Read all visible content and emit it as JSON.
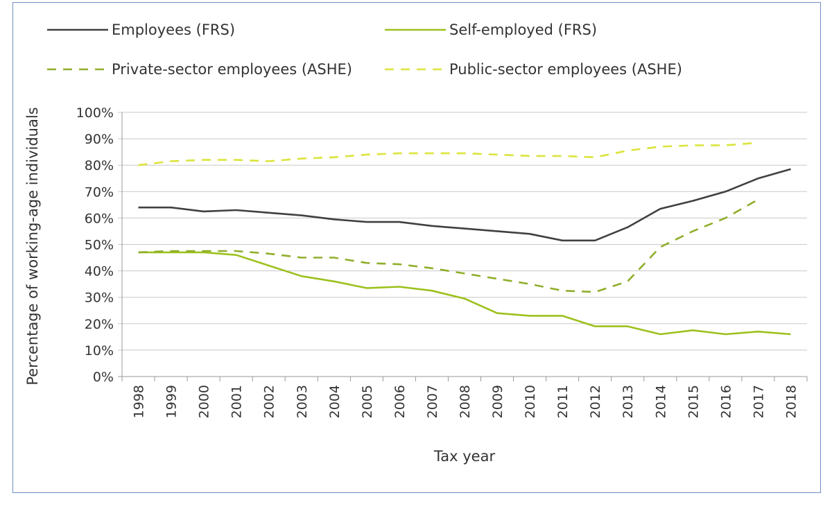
{
  "chart_data": {
    "type": "line",
    "title": "",
    "xlabel": "Tax year",
    "ylabel": "Percentage of working-age individuals",
    "ylim": [
      0,
      100
    ],
    "yticks": [
      "0%",
      "10%",
      "20%",
      "30%",
      "40%",
      "50%",
      "60%",
      "70%",
      "80%",
      "90%",
      "100%"
    ],
    "categories": [
      "1998",
      "1999",
      "2000",
      "2001",
      "2002",
      "2003",
      "2004",
      "2005",
      "2006",
      "2007",
      "2008",
      "2009",
      "2010",
      "2011",
      "2012",
      "2013",
      "2014",
      "2015",
      "2016",
      "2017",
      "2018"
    ],
    "grid": "horizontal",
    "legend_placement": "top",
    "series": [
      {
        "name": "Employees (FRS)",
        "color": "#404040",
        "dash": "solid",
        "values": [
          64,
          64,
          62.5,
          63,
          62,
          61,
          59.5,
          58.5,
          58.5,
          57,
          56,
          55,
          54,
          51.5,
          51.5,
          56.5,
          63.5,
          66.5,
          70,
          75,
          78.5
        ]
      },
      {
        "name": "Self-employed (FRS)",
        "color": "#9cc11c",
        "dash": "solid",
        "values": [
          47,
          47,
          47,
          46,
          42,
          38,
          36,
          33.5,
          34,
          32.5,
          29.5,
          24,
          23,
          23,
          19,
          19,
          16,
          17.5,
          16,
          17,
          16
        ]
      },
      {
        "name": "Private-sector employees (ASHE)",
        "color": "#8fae2a",
        "dash": "dashed",
        "values": [
          47,
          47.5,
          47.5,
          47.5,
          46.5,
          45,
          45,
          43,
          42.5,
          41,
          39,
          37,
          35,
          32.5,
          32,
          36,
          49,
          55,
          60,
          67,
          null
        ]
      },
      {
        "name": "Public-sector employees (ASHE)",
        "color": "#dbe43a",
        "dash": "dashed",
        "values": [
          80,
          81.5,
          82,
          82,
          81.5,
          82.5,
          83,
          84,
          84.5,
          84.5,
          84.5,
          84,
          83.5,
          83.5,
          83,
          85.5,
          87,
          87.5,
          87.5,
          88.5,
          null
        ]
      }
    ]
  }
}
